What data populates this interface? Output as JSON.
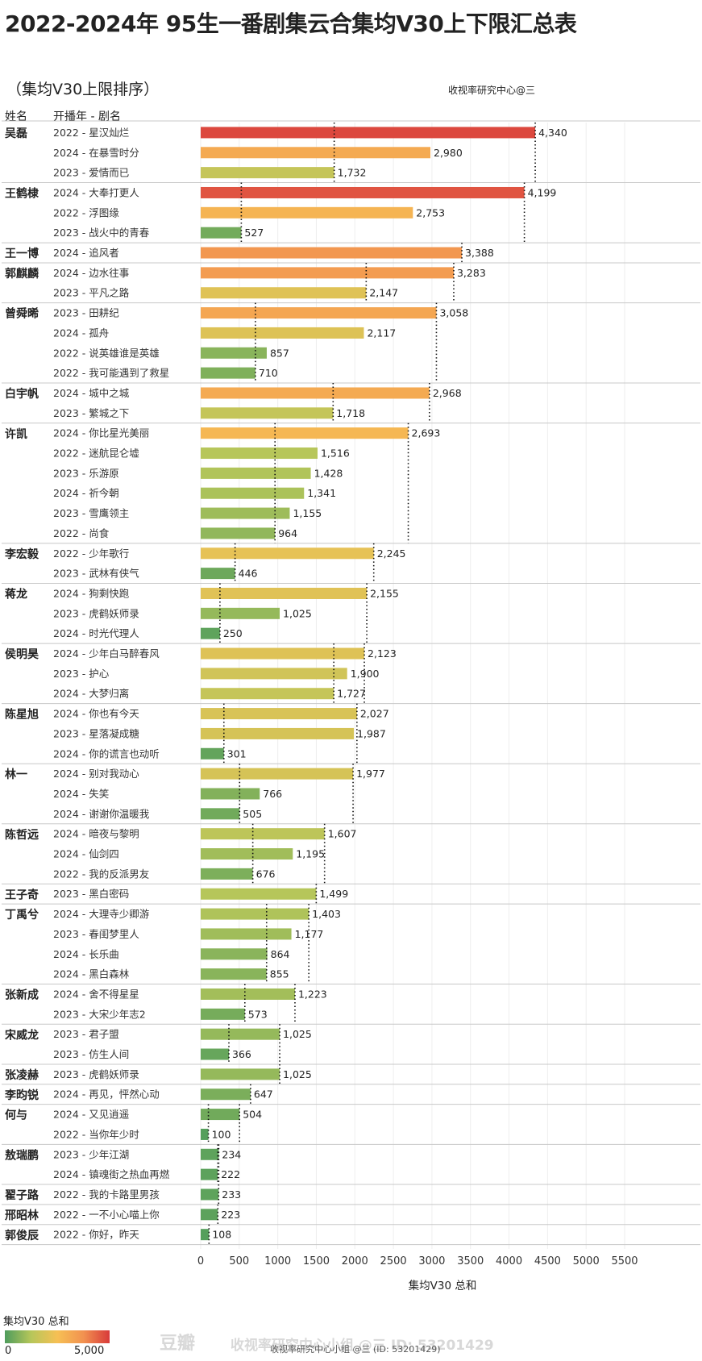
{
  "title": "2022-2024年 95生一番剧集云合集均V30上下限汇总表",
  "subtitle": "（集均V30上限排序）",
  "credit": "收视率研究中心@三",
  "header": {
    "col_actor": "姓名",
    "col_show": "开播年 - 剧名"
  },
  "legend": {
    "title": "集均V30 总和",
    "min": "0",
    "max": "5,000"
  },
  "watermark": {
    "brand": "豆瓣",
    "text": "收视率研究中心小组 @三 ID: 53201429",
    "footnote": "收视率研究中心小组 @三 (ID: 53201429)"
  },
  "colors": {
    "low": "#4e9c5c",
    "mid_low": "#b6c65a",
    "mid": "#f6c054",
    "mid_high": "#f29250",
    "high": "#d83a3a"
  },
  "chart_data": {
    "type": "bar",
    "orientation": "horizontal",
    "xlabel": "集均V30 总和",
    "xlim": [
      0,
      5500
    ],
    "xticks": [
      0,
      500,
      1000,
      1500,
      2000,
      2500,
      3000,
      3500,
      4000,
      4500,
      5000,
      5500
    ],
    "xtick_labels": [
      "0",
      "500",
      "1000",
      "1500",
      "2000",
      "2500",
      "3000",
      "3500",
      "4000",
      "4500",
      "5000",
      "5500"
    ],
    "color_scale": [
      0,
      5000
    ],
    "reference_lines": "per actor: dotted lines at the actor's max and min",
    "groups": [
      {
        "actor": "吴磊",
        "shows": [
          {
            "label": "2022 - 星汉灿烂",
            "value": 4340,
            "value_label": "4,340"
          },
          {
            "label": "2024 - 在暴雪时分",
            "value": 2980,
            "value_label": "2,980"
          },
          {
            "label": "2023 - 爱情而已",
            "value": 1732,
            "value_label": "1,732"
          }
        ]
      },
      {
        "actor": "王鹤棣",
        "shows": [
          {
            "label": "2024 - 大奉打更人",
            "value": 4199,
            "value_label": "4,199"
          },
          {
            "label": "2022 - 浮图缘",
            "value": 2753,
            "value_label": "2,753"
          },
          {
            "label": "2023 - 战火中的青春",
            "value": 527,
            "value_label": "527"
          }
        ]
      },
      {
        "actor": "王一博",
        "shows": [
          {
            "label": "2024 - 追风者",
            "value": 3388,
            "value_label": "3,388"
          }
        ]
      },
      {
        "actor": "郭麒麟",
        "shows": [
          {
            "label": "2024 - 边水往事",
            "value": 3283,
            "value_label": "3,283"
          },
          {
            "label": "2023 - 平凡之路",
            "value": 2147,
            "value_label": "2,147"
          }
        ]
      },
      {
        "actor": "曾舜晞",
        "shows": [
          {
            "label": "2023 - 田耕纪",
            "value": 3058,
            "value_label": "3,058"
          },
          {
            "label": "2024 - 孤舟",
            "value": 2117,
            "value_label": "2,117"
          },
          {
            "label": "2022 - 说英雄谁是英雄",
            "value": 857,
            "value_label": "857"
          },
          {
            "label": "2022 - 我可能遇到了救星",
            "value": 710,
            "value_label": "710"
          }
        ]
      },
      {
        "actor": "白宇帆",
        "shows": [
          {
            "label": "2024 - 城中之城",
            "value": 2968,
            "value_label": "2,968"
          },
          {
            "label": "2023 - 繁城之下",
            "value": 1718,
            "value_label": "1,718"
          }
        ]
      },
      {
        "actor": "许凯",
        "shows": [
          {
            "label": "2024 - 你比星光美丽",
            "value": 2693,
            "value_label": "2,693"
          },
          {
            "label": "2022 - 迷航昆仑墟",
            "value": 1516,
            "value_label": "1,516"
          },
          {
            "label": "2023 - 乐游原",
            "value": 1428,
            "value_label": "1,428"
          },
          {
            "label": "2024 - 祈今朝",
            "value": 1341,
            "value_label": "1,341"
          },
          {
            "label": "2023 - 雪鹰领主",
            "value": 1155,
            "value_label": "1,155"
          },
          {
            "label": "2022 - 尚食",
            "value": 964,
            "value_label": "964"
          }
        ]
      },
      {
        "actor": "李宏毅",
        "shows": [
          {
            "label": "2022 - 少年歌行",
            "value": 2245,
            "value_label": "2,245"
          },
          {
            "label": "2023 - 武林有侠气",
            "value": 446,
            "value_label": "446"
          }
        ]
      },
      {
        "actor": "蒋龙",
        "shows": [
          {
            "label": "2024 - 狗剩快跑",
            "value": 2155,
            "value_label": "2,155"
          },
          {
            "label": "2023 - 虎鹤妖师录",
            "value": 1025,
            "value_label": "1,025"
          },
          {
            "label": "2024 - 时光代理人",
            "value": 250,
            "value_label": "250"
          }
        ]
      },
      {
        "actor": "侯明昊",
        "shows": [
          {
            "label": "2024 - 少年白马醉春风",
            "value": 2123,
            "value_label": "2,123"
          },
          {
            "label": "2023 - 护心",
            "value": 1900,
            "value_label": "1,900"
          },
          {
            "label": "2024 - 大梦归离",
            "value": 1727,
            "value_label": "1,727"
          }
        ]
      },
      {
        "actor": "陈星旭",
        "shows": [
          {
            "label": "2024 - 你也有今天",
            "value": 2027,
            "value_label": "2,027"
          },
          {
            "label": "2023 - 星落凝成糖",
            "value": 1987,
            "value_label": "1,987"
          },
          {
            "label": "2024 - 你的谎言也动听",
            "value": 301,
            "value_label": "301"
          }
        ]
      },
      {
        "actor": "林一",
        "shows": [
          {
            "label": "2024 - 别对我动心",
            "value": 1977,
            "value_label": "1,977"
          },
          {
            "label": "2024 - 失笑",
            "value": 766,
            "value_label": "766"
          },
          {
            "label": "2024 - 谢谢你温暖我",
            "value": 505,
            "value_label": "505"
          }
        ]
      },
      {
        "actor": "陈哲远",
        "shows": [
          {
            "label": "2024 - 暗夜与黎明",
            "value": 1607,
            "value_label": "1,607"
          },
          {
            "label": "2024 - 仙剑四",
            "value": 1195,
            "value_label": "1,195"
          },
          {
            "label": "2022 - 我的反派男友",
            "value": 676,
            "value_label": "676"
          }
        ]
      },
      {
        "actor": "王子奇",
        "shows": [
          {
            "label": "2023 - 黑白密码",
            "value": 1499,
            "value_label": "1,499"
          }
        ]
      },
      {
        "actor": "丁禹兮",
        "shows": [
          {
            "label": "2024 - 大理寺少卿游",
            "value": 1403,
            "value_label": "1,403"
          },
          {
            "label": "2023 - 春闺梦里人",
            "value": 1177,
            "value_label": "1,177"
          },
          {
            "label": "2024 - 长乐曲",
            "value": 864,
            "value_label": "864"
          },
          {
            "label": "2024 - 黑白森林",
            "value": 855,
            "value_label": "855"
          }
        ]
      },
      {
        "actor": "张新成",
        "shows": [
          {
            "label": "2024 - 舍不得星星",
            "value": 1223,
            "value_label": "1,223"
          },
          {
            "label": "2023 - 大宋少年志2",
            "value": 573,
            "value_label": "573"
          }
        ]
      },
      {
        "actor": "宋威龙",
        "shows": [
          {
            "label": "2023 - 君子盟",
            "value": 1025,
            "value_label": "1,025"
          },
          {
            "label": "2023 - 仿生人间",
            "value": 366,
            "value_label": "366"
          }
        ]
      },
      {
        "actor": "张凌赫",
        "shows": [
          {
            "label": "2023 - 虎鹤妖师录",
            "value": 1025,
            "value_label": "1,025"
          }
        ]
      },
      {
        "actor": "李昀锐",
        "shows": [
          {
            "label": "2024 - 再见，怦然心动",
            "value": 647,
            "value_label": "647"
          }
        ]
      },
      {
        "actor": "何与",
        "shows": [
          {
            "label": "2024 - 又见逍遥",
            "value": 504,
            "value_label": "504"
          },
          {
            "label": "2022 - 当你年少时",
            "value": 100,
            "value_label": "100"
          }
        ]
      },
      {
        "actor": "敖瑞鹏",
        "shows": [
          {
            "label": "2023 - 少年江湖",
            "value": 234,
            "value_label": "234"
          },
          {
            "label": "2024 - 镇魂街之热血再燃",
            "value": 222,
            "value_label": "222"
          }
        ]
      },
      {
        "actor": "翟子路",
        "shows": [
          {
            "label": "2022 - 我的卡路里男孩",
            "value": 233,
            "value_label": "233"
          }
        ]
      },
      {
        "actor": "邢昭林",
        "shows": [
          {
            "label": "2022 - 一不小心喵上你",
            "value": 223,
            "value_label": "223"
          }
        ]
      },
      {
        "actor": "郭俊辰",
        "shows": [
          {
            "label": "2022 - 你好，昨天",
            "value": 108,
            "value_label": "108"
          }
        ]
      }
    ]
  }
}
